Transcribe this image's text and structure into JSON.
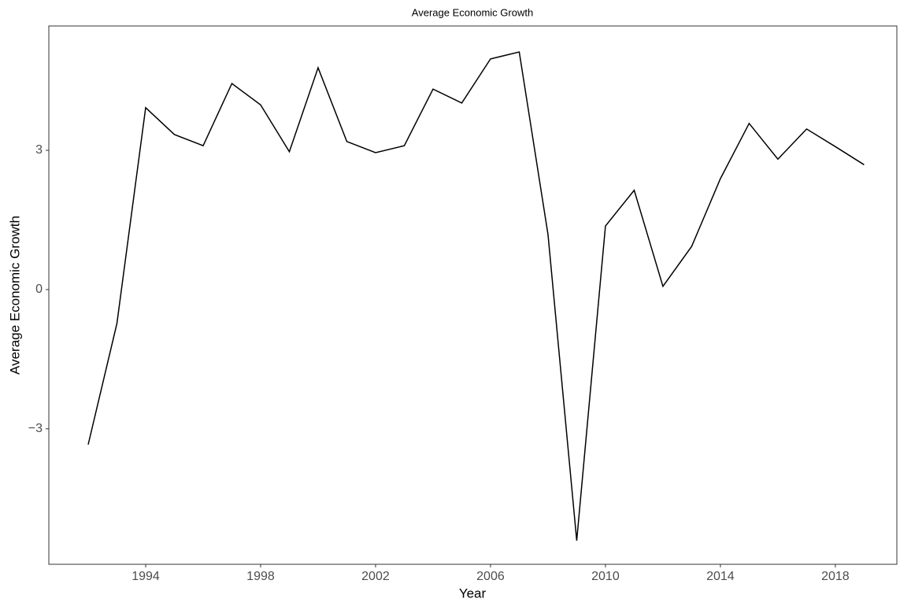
{
  "chart_data": {
    "type": "line",
    "title": "Average Economic Growth",
    "xlabel": "Year",
    "ylabel": "Average Economic Growth",
    "x": [
      1992,
      1993,
      1994,
      1995,
      1996,
      1997,
      1998,
      1999,
      2000,
      2001,
      2002,
      2003,
      2004,
      2005,
      2006,
      2007,
      2008,
      2009,
      2010,
      2011,
      2012,
      2013,
      2014,
      2015,
      2016,
      2017,
      2018,
      2019
    ],
    "series": [
      {
        "name": "Average Economic Growth",
        "color": "#000000",
        "values": [
          -3.34,
          -0.73,
          3.92,
          3.34,
          3.1,
          4.44,
          3.98,
          2.97,
          4.78,
          3.19,
          2.95,
          3.1,
          4.32,
          4.02,
          4.97,
          5.12,
          1.19,
          -5.41,
          1.37,
          2.14,
          0.07,
          0.93,
          2.39,
          3.58,
          2.81,
          3.46,
          3.08,
          2.69
        ]
      }
    ],
    "xlim": [
      1990.63,
      2020.14
    ],
    "xticks": [
      1994,
      1998,
      2002,
      2006,
      2010,
      2014,
      2018
    ],
    "ylim": [
      -5.92,
      5.68
    ],
    "yticks": [
      {
        "value": -3,
        "label": "−3"
      },
      0,
      3
    ],
    "grid": false
  }
}
